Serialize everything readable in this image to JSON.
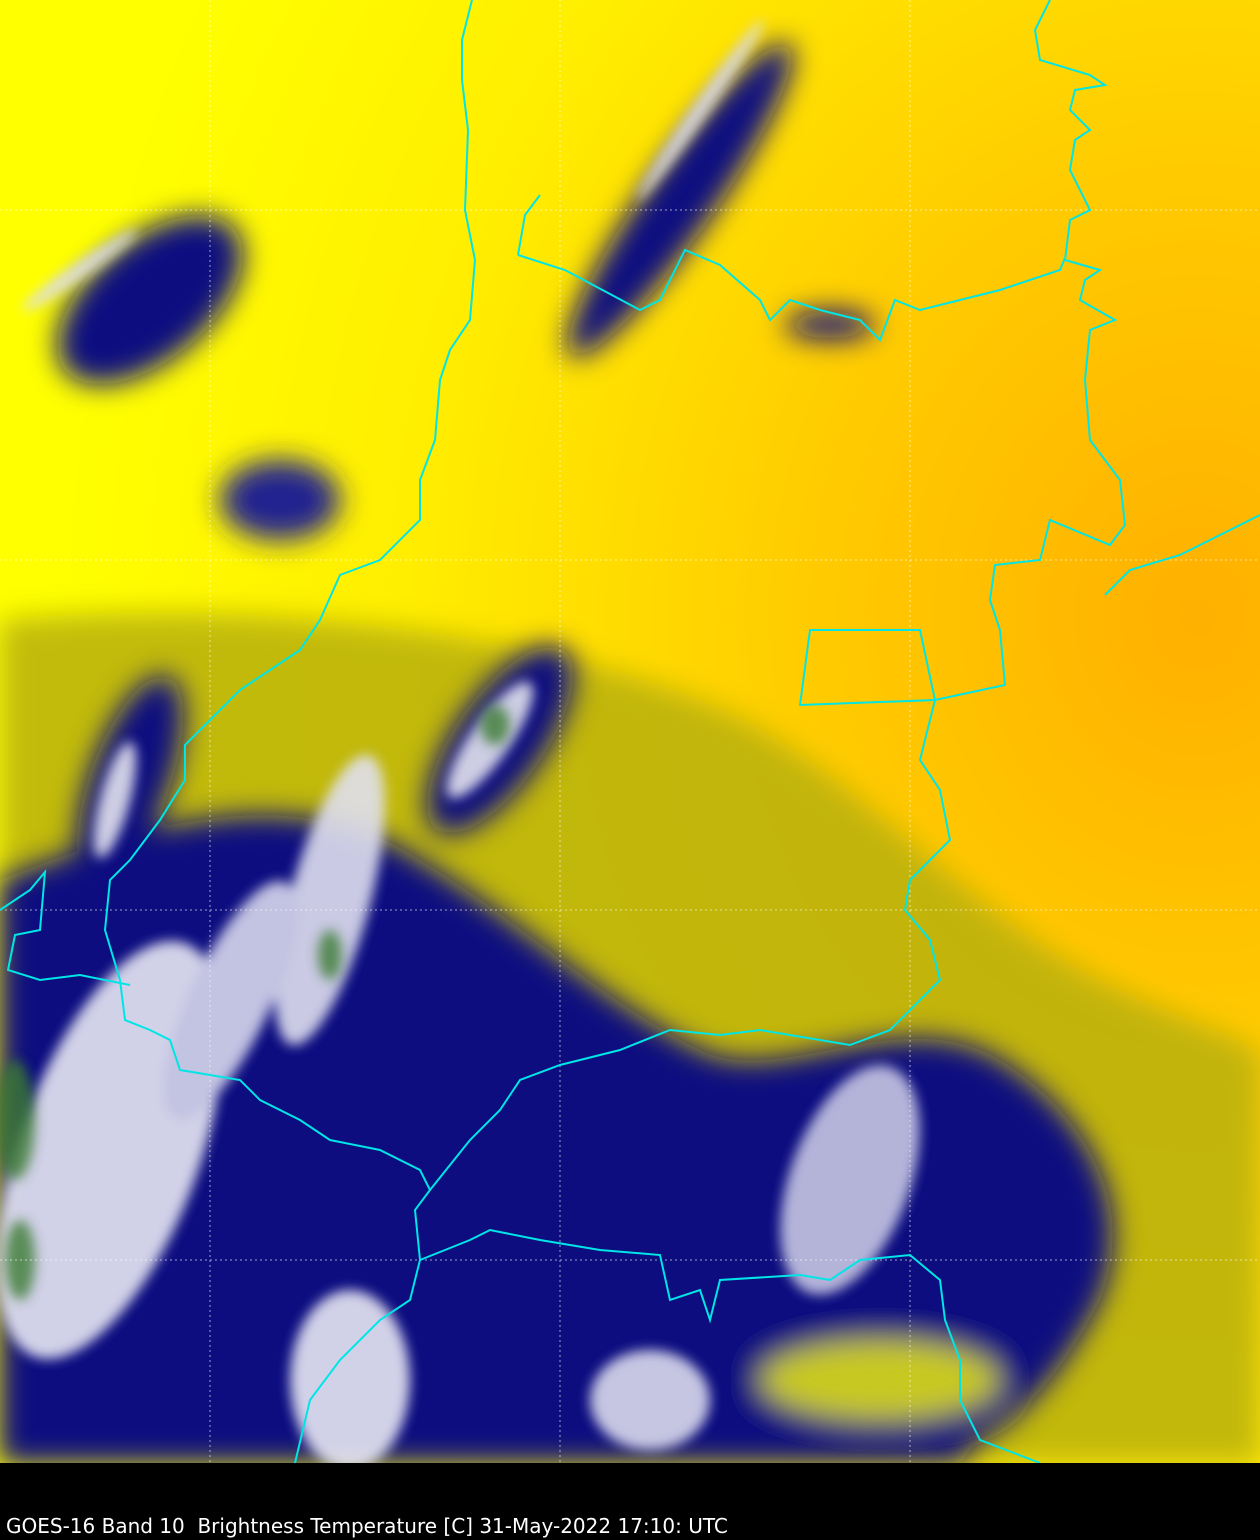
{
  "caption": "GOES-16 Band 10  Brightness Temperature [C] 31-May-2022 17:10: UTC",
  "colors": {
    "warm": "#ffff00",
    "warmest": "#ffb000",
    "cold": "#0a0a80",
    "coldest": "#ffffff",
    "very_cold": "#3a7a30",
    "borders": "#00e5e5",
    "grid": "#ffffff"
  }
}
